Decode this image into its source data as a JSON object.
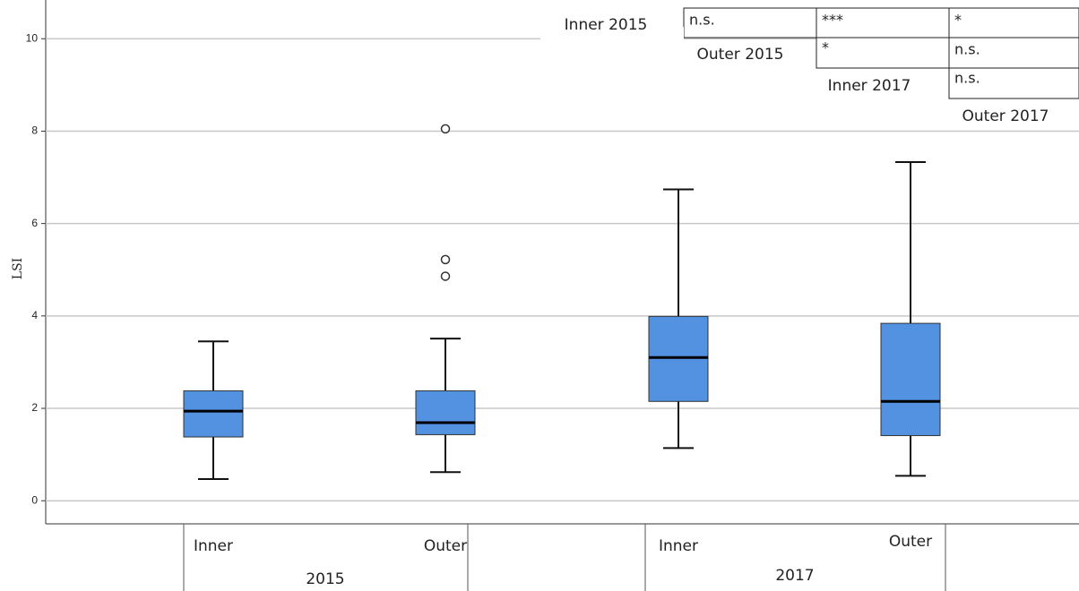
{
  "chart_data": {
    "type": "box",
    "y_label": "LSI",
    "categories": [
      "Inner",
      "Outer",
      "Inner",
      "Outer"
    ],
    "groups": [
      "2015",
      "2017"
    ],
    "color": "#5292e0",
    "ylim": [
      -0.5,
      10.8
    ],
    "yticks": [
      0,
      2,
      4,
      6,
      8,
      10
    ],
    "grid": true,
    "boxes": [
      {
        "min": 0.47,
        "q1": 1.38,
        "median": 1.94,
        "q3": 2.38,
        "max": 3.45,
        "outliers": []
      },
      {
        "min": 0.62,
        "q1": 1.43,
        "median": 1.69,
        "q3": 2.38,
        "max": 3.51,
        "outliers": [
          4.86,
          5.22,
          8.05
        ]
      },
      {
        "min": 1.14,
        "q1": 2.15,
        "median": 3.1,
        "q3": 3.99,
        "max": 6.74,
        "outliers": []
      },
      {
        "min": 0.54,
        "q1": 1.41,
        "median": 2.15,
        "q3": 3.84,
        "max": 7.33,
        "outliers": []
      }
    ]
  },
  "significance": {
    "labels": [
      "Inner 2015",
      "Outer 2015",
      "Inner 2017",
      "Outer 2017"
    ],
    "rows": [
      [
        "n.s.",
        "***",
        "*"
      ],
      [
        "*",
        "n.s."
      ],
      [
        "n.s."
      ]
    ]
  }
}
